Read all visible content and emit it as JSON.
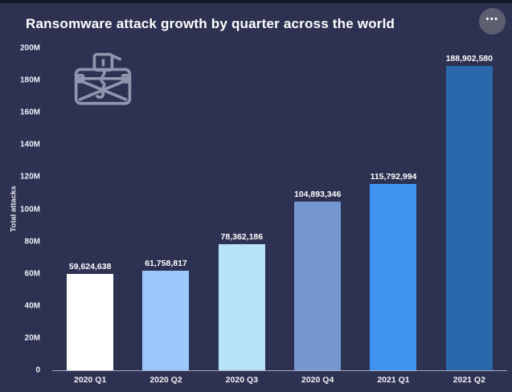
{
  "card": {
    "title": "Ransomware attack growth by quarter across the world",
    "menu_dots": "•••"
  },
  "icons": {
    "ransomware_chest": "ransomware-chest-icon",
    "more_options": "more-options-icon"
  },
  "colors": {
    "page_background": "#14162a",
    "card_background": "#2d3152",
    "title_text": "#ffffff",
    "axis_text": "#eef0f8",
    "axis_line": "#a6aabd",
    "menu_button": "#5c5f6f",
    "icon_stroke": "#9ba1b8"
  },
  "chart_data": {
    "type": "bar",
    "title": "Ransomware attack growth by quarter across the world",
    "xlabel": "",
    "ylabel": "Total attacks",
    "ylim": [
      0,
      200000000
    ],
    "grid": false,
    "legend": false,
    "categories": [
      "2020 Q1",
      "2020 Q2",
      "2020 Q3",
      "2020 Q4",
      "2021 Q1",
      "2021 Q2"
    ],
    "values": [
      59624638,
      61758817,
      78362186,
      104893346,
      115792994,
      188902580
    ],
    "value_labels": [
      "59,624,638",
      "61,758,817",
      "78,362,186",
      "104,893,346",
      "115,792,994",
      "188,902,580"
    ],
    "bar_colors": [
      "#ffffff",
      "#9cc7fb",
      "#b7e2f9",
      "#7697cf",
      "#4193f2",
      "#2a68ab"
    ],
    "yticks": [
      {
        "value": 0,
        "label": "0"
      },
      {
        "value": 20000000,
        "label": "20M"
      },
      {
        "value": 40000000,
        "label": "40M"
      },
      {
        "value": 60000000,
        "label": "60M"
      },
      {
        "value": 80000000,
        "label": "80M"
      },
      {
        "value": 100000000,
        "label": "100M"
      },
      {
        "value": 120000000,
        "label": "120M"
      },
      {
        "value": 140000000,
        "label": "140M"
      },
      {
        "value": 160000000,
        "label": "160M"
      },
      {
        "value": 180000000,
        "label": "180M"
      },
      {
        "value": 200000000,
        "label": "200M"
      }
    ]
  }
}
